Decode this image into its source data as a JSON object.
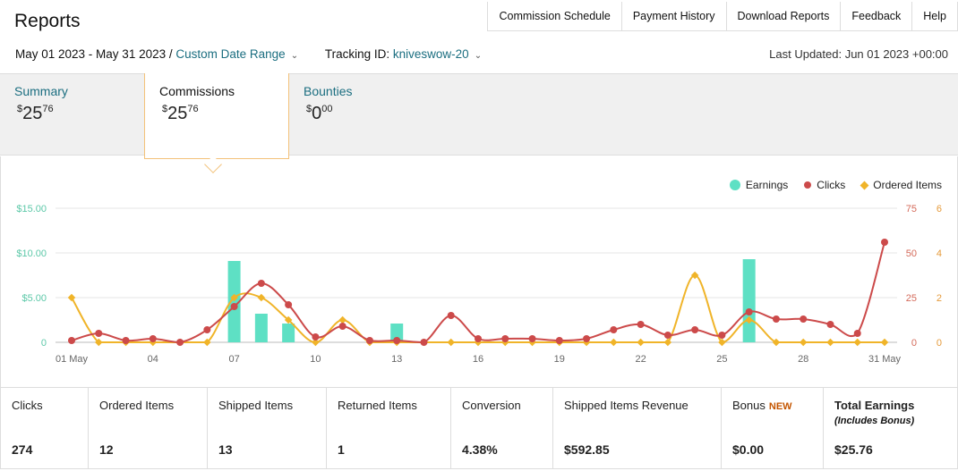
{
  "header": {
    "title": "Reports"
  },
  "nav": [
    "Commission Schedule",
    "Payment History",
    "Download Reports",
    "Feedback",
    "Help"
  ],
  "filters": {
    "date_range": "May 01 2023 - May 31 2023 /",
    "range_type": "Custom Date Range",
    "tracking_label": "Tracking ID:",
    "tracking_id": "kniveswow-20",
    "last_updated": "Last Updated: Jun 01 2023 +00:00"
  },
  "tabs": [
    {
      "label": "Summary",
      "whole": "25",
      "cents": "76"
    },
    {
      "label": "Commissions",
      "whole": "25",
      "cents": "76"
    },
    {
      "label": "Bounties",
      "whole": "0",
      "cents": "00"
    }
  ],
  "legend": {
    "earnings": "Earnings",
    "clicks": "Clicks",
    "ordered": "Ordered Items"
  },
  "colors": {
    "earnings": "#5ee0c4",
    "clicks": "#cc4a4a",
    "ordered": "#f0b429",
    "link": "#1b6e80"
  },
  "chart_data": {
    "type": "bar+line",
    "x_tick_labels": [
      "01 May",
      "04",
      "07",
      "10",
      "13",
      "16",
      "19",
      "22",
      "25",
      "28",
      "31 May"
    ],
    "y_left_ticks": [
      "$15.00",
      "$10.00",
      "$5.00",
      "0"
    ],
    "y_right_clicks_ticks": [
      "75",
      "50",
      "25",
      "0"
    ],
    "y_right_items_ticks": [
      "6",
      "4",
      "2",
      "0"
    ],
    "ylim_earnings": [
      0,
      15
    ],
    "ylim_clicks": [
      0,
      75
    ],
    "ylim_items": [
      0,
      6
    ],
    "days": [
      1,
      2,
      3,
      4,
      5,
      6,
      7,
      8,
      9,
      10,
      11,
      12,
      13,
      14,
      15,
      16,
      17,
      18,
      19,
      20,
      21,
      22,
      23,
      24,
      25,
      26,
      27,
      28,
      29,
      30,
      31
    ],
    "series": [
      {
        "name": "Earnings",
        "values": [
          0,
          0,
          0,
          0,
          0,
          0,
          9.1,
          3.2,
          2.1,
          0,
          0,
          0,
          2.1,
          0,
          0,
          0,
          0,
          0,
          0,
          0,
          0,
          0,
          0,
          0,
          0,
          9.3,
          0,
          0,
          0,
          0,
          0
        ]
      },
      {
        "name": "Clicks",
        "values": [
          1,
          5,
          1,
          2,
          0,
          7,
          20,
          33,
          21,
          3,
          9,
          1,
          1,
          0,
          15,
          2,
          2,
          2,
          1,
          2,
          7,
          10,
          4,
          7,
          4,
          17,
          13,
          13,
          10,
          5,
          56
        ]
      },
      {
        "name": "Ordered Items",
        "values": [
          2,
          0,
          0,
          0,
          0,
          0,
          2,
          2,
          1,
          0,
          1,
          0,
          0,
          0,
          0,
          0,
          0,
          0,
          0,
          0,
          0,
          0,
          0,
          3,
          0,
          1,
          0,
          0,
          0,
          0,
          0
        ]
      }
    ]
  },
  "stats": [
    {
      "label": "Clicks",
      "value": "274"
    },
    {
      "label": "Ordered Items",
      "value": "12"
    },
    {
      "label": "Shipped Items",
      "value": "13"
    },
    {
      "label": "Returned Items",
      "value": "1"
    },
    {
      "label": "Conversion",
      "value": "4.38%"
    },
    {
      "label": "Shipped Items Revenue",
      "value": "$592.85"
    },
    {
      "label": "Bonus",
      "badge": "NEW",
      "value": "$0.00"
    },
    {
      "label": "Total Earnings",
      "sub": "(Includes Bonus)",
      "value": "$25.76"
    }
  ]
}
